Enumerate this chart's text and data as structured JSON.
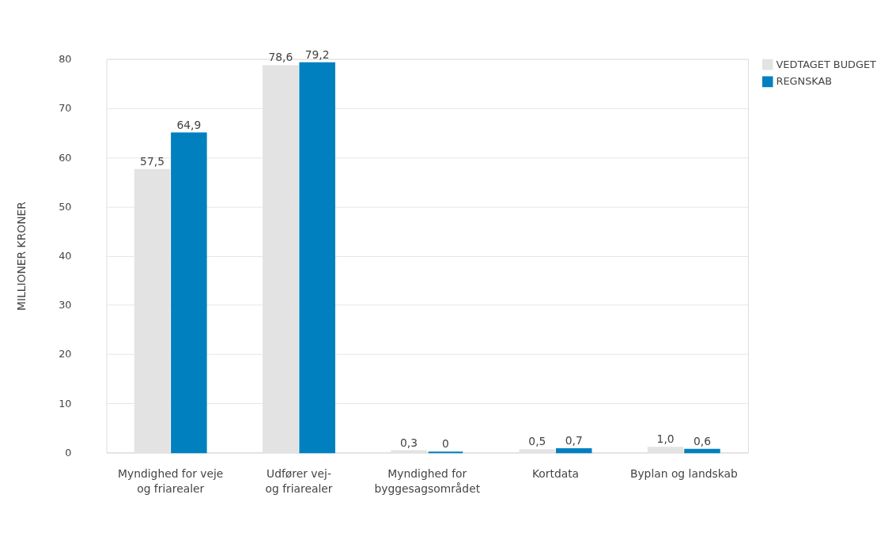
{
  "chart_data": {
    "type": "bar",
    "ylabel": "MILLIONER KRONER",
    "categories": [
      "Myndighed for veje\nog friarealer",
      "Udfører vej-\nog friarealer",
      "Myndighed for\nbyggesagsområdet",
      "Kortdata",
      "Byplan og landskab"
    ],
    "series": [
      {
        "name": "VEDTAGET BUDGET",
        "color": "#e3e3e3",
        "values": [
          57.5,
          78.6,
          0.3,
          0.5,
          1.0
        ],
        "value_labels": [
          "57,5",
          "78,6",
          "0,3",
          "0,5",
          "1,0"
        ]
      },
      {
        "name": "REGNSKAB",
        "color": "#0080bf",
        "values": [
          64.9,
          79.2,
          0,
          0.7,
          0.6
        ],
        "value_labels": [
          "64,9",
          "79,2",
          "0",
          "0,7",
          "0,6"
        ]
      }
    ],
    "ylim": [
      0,
      80
    ],
    "yticks": [
      0,
      10,
      20,
      30,
      40,
      50,
      60,
      70,
      80
    ],
    "grid": "y",
    "legend": "top right"
  }
}
